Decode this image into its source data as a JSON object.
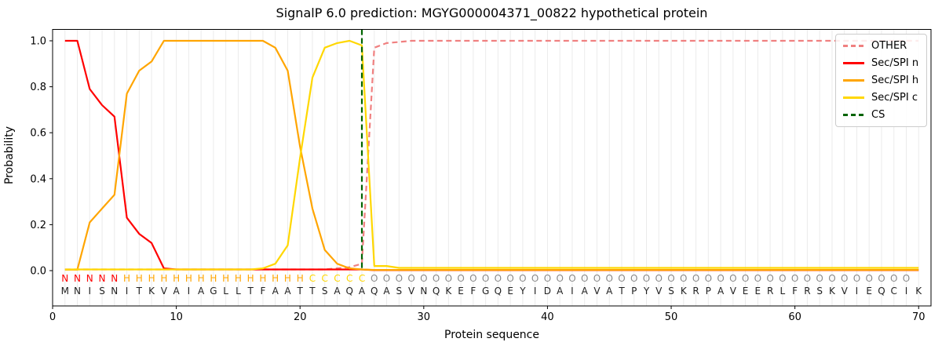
{
  "title": "SignalP 6.0 prediction: MGYG000004371_00822 hypothetical protein",
  "legend": {
    "items": [
      {
        "label": "OTHER",
        "color": "#f08080",
        "dashed": true
      },
      {
        "label": "Sec/SPI n",
        "color": "#ff0000",
        "dashed": false
      },
      {
        "label": "Sec/SPI h",
        "color": "#ffa500",
        "dashed": false
      },
      {
        "label": "Sec/SPI c",
        "color": "#ffd700",
        "dashed": false
      },
      {
        "label": "CS",
        "color": "#006400",
        "dashed": true
      }
    ]
  },
  "chart_data": {
    "type": "line",
    "title": "SignalP 6.0 prediction: MGYG000004371_00822 hypothetical protein",
    "xlabel": "Protein sequence",
    "ylabel": "Probability",
    "xlim": [
      0,
      71
    ],
    "ylim": [
      -0.153,
      1.049
    ],
    "xticks": [
      0,
      10,
      20,
      30,
      40,
      50,
      60,
      70
    ],
    "ytick_labels": [
      "0.0",
      "0.2",
      "0.4",
      "0.6",
      "0.8",
      "1.0"
    ],
    "ytick_values": [
      0.0,
      0.2,
      0.4,
      0.6,
      0.8,
      1.0
    ],
    "grid": "light vertical gridline at every residue position 1-70",
    "legend_position": "upper right",
    "sequence": "MNISNITKVAIAGLLTFAATTSAQAQASVNQKEFGQEYIDAIAVATPYVSKRPAVEERLFRSKVIEQCIK",
    "region_annotation": "NNNNNHHHHHHHHHHHHHHHCCCCCOOOOOOOOOOOOOOOOOOOOOOOOOOOOOOOOOOOOOOOOOOOO",
    "annotation_colors": {
      "N": "#ff0000",
      "H": "#ffa500",
      "C": "#ffd700",
      "O": "#8a8a8a"
    },
    "sequence_color": "#212121",
    "cs_line": {
      "position": 25,
      "color": "#006400",
      "dashed": true
    },
    "x_positions_note": "series values correspond to residue positions 1-70",
    "series": [
      {
        "name": "OTHER",
        "color": "#f08080",
        "dashed": true,
        "values": [
          0.005,
          0.005,
          0.005,
          0.005,
          0.005,
          0.005,
          0.005,
          0.005,
          0.005,
          0.005,
          0.005,
          0.005,
          0.005,
          0.005,
          0.005,
          0.005,
          0.005,
          0.005,
          0.005,
          0.005,
          0.005,
          0.005,
          0.01,
          0.015,
          0.03,
          0.97,
          0.99,
          0.995,
          1.0,
          1.0,
          1.0,
          1.0,
          1.0,
          1.0,
          1.0,
          1.0,
          1.0,
          1.0,
          1.0,
          1.0,
          1.0,
          1.0,
          1.0,
          1.0,
          1.0,
          1.0,
          1.0,
          1.0,
          1.0,
          1.0,
          1.0,
          1.0,
          1.0,
          1.0,
          1.0,
          1.0,
          1.0,
          1.0,
          1.0,
          1.0,
          1.0,
          1.0,
          1.0,
          1.0,
          1.0,
          1.0,
          1.0,
          1.0,
          1.0,
          1.0
        ]
      },
      {
        "name": "Sec/SPI n",
        "color": "#ff0000",
        "dashed": false,
        "values": [
          1.0,
          1.0,
          0.79,
          0.72,
          0.67,
          0.23,
          0.16,
          0.12,
          0.01,
          0.005,
          0.005,
          0.005,
          0.005,
          0.005,
          0.005,
          0.005,
          0.005,
          0.005,
          0.005,
          0.005,
          0.005,
          0.005,
          0.005,
          0.005,
          0.005,
          0.002,
          0.002,
          0.002,
          0.002,
          0.002,
          0.002,
          0.002,
          0.002,
          0.002,
          0.002,
          0.002,
          0.002,
          0.002,
          0.002,
          0.002,
          0.002,
          0.002,
          0.002,
          0.002,
          0.002,
          0.002,
          0.002,
          0.002,
          0.002,
          0.002,
          0.002,
          0.002,
          0.002,
          0.002,
          0.002,
          0.002,
          0.002,
          0.002,
          0.002,
          0.002,
          0.002,
          0.002,
          0.002,
          0.002,
          0.002,
          0.002,
          0.002,
          0.002,
          0.002,
          0.002
        ]
      },
      {
        "name": "Sec/SPI h",
        "color": "#ffa500",
        "dashed": false,
        "values": [
          0.004,
          0.004,
          0.21,
          0.27,
          0.33,
          0.77,
          0.87,
          0.91,
          1.0,
          1.0,
          1.0,
          1.0,
          1.0,
          1.0,
          1.0,
          1.0,
          1.0,
          0.97,
          0.87,
          0.54,
          0.27,
          0.09,
          0.03,
          0.01,
          0.005,
          0.003,
          0.003,
          0.003,
          0.003,
          0.003,
          0.003,
          0.003,
          0.003,
          0.003,
          0.003,
          0.003,
          0.003,
          0.003,
          0.003,
          0.003,
          0.003,
          0.003,
          0.003,
          0.003,
          0.003,
          0.003,
          0.003,
          0.003,
          0.003,
          0.003,
          0.003,
          0.003,
          0.003,
          0.003,
          0.003,
          0.003,
          0.003,
          0.003,
          0.003,
          0.003,
          0.003,
          0.003,
          0.003,
          0.003,
          0.003,
          0.003,
          0.003,
          0.003,
          0.003,
          0.003
        ]
      },
      {
        "name": "Sec/SPI c",
        "color": "#ffd700",
        "dashed": false,
        "values": [
          0.005,
          0.005,
          0.005,
          0.005,
          0.005,
          0.005,
          0.005,
          0.005,
          0.005,
          0.005,
          0.005,
          0.005,
          0.005,
          0.005,
          0.005,
          0.005,
          0.01,
          0.03,
          0.11,
          0.49,
          0.84,
          0.97,
          0.99,
          1.0,
          0.98,
          0.02,
          0.02,
          0.012,
          0.012,
          0.012,
          0.012,
          0.012,
          0.012,
          0.012,
          0.012,
          0.012,
          0.012,
          0.012,
          0.012,
          0.012,
          0.012,
          0.012,
          0.012,
          0.012,
          0.012,
          0.012,
          0.012,
          0.012,
          0.012,
          0.012,
          0.012,
          0.012,
          0.012,
          0.012,
          0.012,
          0.012,
          0.012,
          0.012,
          0.012,
          0.012,
          0.012,
          0.012,
          0.012,
          0.012,
          0.012,
          0.012,
          0.012,
          0.012,
          0.012,
          0.012
        ]
      }
    ]
  }
}
